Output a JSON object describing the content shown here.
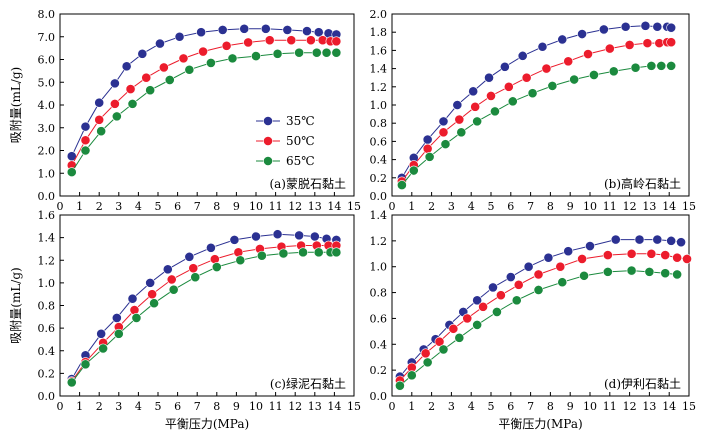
{
  "colors": {
    "s35": "#2b3192",
    "s50": "#ec1c2c",
    "s65": "#1b8a3e"
  },
  "legend": [
    "35℃",
    "50℃",
    "65℃"
  ],
  "chart_data": [
    {
      "type": "line",
      "label": "(a)蒙脱石黏土",
      "xlabel": "",
      "ylabel": "吸附量(mL/g)",
      "xlim": [
        0,
        15
      ],
      "ylim": [
        0,
        8.0
      ],
      "xticks": [
        "0",
        "1",
        "2",
        "3",
        "4",
        "5",
        "6",
        "7",
        "8",
        "9",
        "10",
        "11",
        "12",
        "13",
        "14",
        "15"
      ],
      "yticks": [
        "0.0",
        "1.0",
        "2.0",
        "3.0",
        "4.0",
        "5.0",
        "6.0",
        "7.0",
        "8.0"
      ],
      "series": [
        {
          "name": "35℃",
          "x": [
            0.6,
            1.3,
            2.0,
            2.8,
            3.4,
            4.2,
            5.1,
            6.1,
            7.2,
            8.3,
            9.4,
            10.5,
            11.6,
            12.6,
            13.2,
            13.7,
            14.1
          ],
          "y": [
            1.75,
            3.05,
            4.1,
            4.95,
            5.7,
            6.25,
            6.7,
            7.0,
            7.2,
            7.3,
            7.35,
            7.35,
            7.3,
            7.25,
            7.2,
            7.15,
            7.1
          ]
        },
        {
          "name": "50℃",
          "x": [
            0.6,
            1.3,
            2.0,
            2.8,
            3.6,
            4.4,
            5.3,
            6.3,
            7.3,
            8.5,
            9.6,
            10.7,
            11.8,
            12.8,
            13.4,
            13.8,
            14.1
          ],
          "y": [
            1.35,
            2.45,
            3.35,
            4.05,
            4.7,
            5.2,
            5.65,
            6.05,
            6.35,
            6.6,
            6.75,
            6.85,
            6.85,
            6.85,
            6.85,
            6.8,
            6.8
          ]
        },
        {
          "name": "65℃",
          "x": [
            0.6,
            1.3,
            2.1,
            2.9,
            3.7,
            4.6,
            5.6,
            6.6,
            7.7,
            8.8,
            10.0,
            11.1,
            12.2,
            13.1,
            13.6,
            14.1
          ],
          "y": [
            1.05,
            2.0,
            2.85,
            3.5,
            4.05,
            4.65,
            5.1,
            5.55,
            5.85,
            6.05,
            6.15,
            6.25,
            6.3,
            6.3,
            6.3,
            6.3
          ]
        }
      ]
    },
    {
      "type": "line",
      "label": "(b)高岭石黏土",
      "xlabel": "",
      "ylabel": "",
      "xlim": [
        0,
        15
      ],
      "ylim": [
        0,
        2.0
      ],
      "xticks": [
        "0",
        "1",
        "2",
        "3",
        "4",
        "5",
        "6",
        "7",
        "8",
        "9",
        "10",
        "11",
        "12",
        "13",
        "14",
        "15"
      ],
      "yticks": [
        "0.0",
        "0.2",
        "0.4",
        "0.6",
        "0.8",
        "1.0",
        "1.2",
        "1.4",
        "1.6",
        "1.8",
        "2.0"
      ],
      "series": [
        {
          "name": "35℃",
          "x": [
            0.5,
            1.1,
            1.8,
            2.6,
            3.3,
            4.1,
            4.9,
            5.7,
            6.6,
            7.6,
            8.6,
            9.6,
            10.7,
            11.8,
            12.8,
            13.4,
            13.9,
            14.1
          ],
          "y": [
            0.2,
            0.42,
            0.62,
            0.82,
            1.0,
            1.15,
            1.3,
            1.42,
            1.54,
            1.64,
            1.72,
            1.78,
            1.83,
            1.86,
            1.87,
            1.86,
            1.86,
            1.85
          ]
        },
        {
          "name": "50℃",
          "x": [
            0.5,
            1.1,
            1.8,
            2.6,
            3.4,
            4.2,
            5.0,
            5.9,
            6.8,
            7.8,
            8.9,
            9.9,
            11.0,
            12.0,
            12.9,
            13.5,
            13.9,
            14.1
          ],
          "y": [
            0.16,
            0.34,
            0.52,
            0.7,
            0.84,
            0.98,
            1.1,
            1.2,
            1.3,
            1.4,
            1.48,
            1.56,
            1.62,
            1.66,
            1.68,
            1.68,
            1.69,
            1.69
          ]
        },
        {
          "name": "65℃",
          "x": [
            0.5,
            1.1,
            1.9,
            2.7,
            3.5,
            4.3,
            5.2,
            6.1,
            7.1,
            8.1,
            9.2,
            10.2,
            11.2,
            12.3,
            13.1,
            13.6,
            14.1
          ],
          "y": [
            0.12,
            0.28,
            0.43,
            0.57,
            0.7,
            0.82,
            0.93,
            1.04,
            1.13,
            1.21,
            1.28,
            1.33,
            1.37,
            1.41,
            1.43,
            1.43,
            1.43
          ]
        }
      ]
    },
    {
      "type": "line",
      "label": "(c)绿泥石黏土",
      "xlabel": "平衡压力(MPa)",
      "ylabel": "吸附量(mL/g)",
      "xlim": [
        0,
        15
      ],
      "ylim": [
        0,
        1.6
      ],
      "xticks": [
        "0",
        "1",
        "2",
        "3",
        "4",
        "5",
        "6",
        "7",
        "8",
        "9",
        "10",
        "11",
        "12",
        "13",
        "14",
        "15"
      ],
      "yticks": [
        "0.0",
        "0.2",
        "0.4",
        "0.6",
        "0.8",
        "1.0",
        "1.2",
        "1.4",
        "1.6"
      ],
      "series": [
        {
          "name": "35℃",
          "x": [
            0.6,
            1.3,
            2.1,
            2.9,
            3.7,
            4.6,
            5.5,
            6.6,
            7.7,
            8.9,
            10.0,
            11.1,
            12.2,
            13.0,
            13.6,
            14.1
          ],
          "y": [
            0.15,
            0.36,
            0.55,
            0.69,
            0.86,
            1.0,
            1.12,
            1.23,
            1.31,
            1.38,
            1.41,
            1.43,
            1.42,
            1.41,
            1.39,
            1.38
          ]
        },
        {
          "name": "50℃",
          "x": [
            0.6,
            1.3,
            2.2,
            3.0,
            3.8,
            4.7,
            5.7,
            6.8,
            7.9,
            9.1,
            10.2,
            11.3,
            12.3,
            13.1,
            13.7,
            14.1
          ],
          "y": [
            0.13,
            0.3,
            0.47,
            0.61,
            0.76,
            0.9,
            1.03,
            1.13,
            1.21,
            1.27,
            1.3,
            1.32,
            1.33,
            1.33,
            1.33,
            1.33
          ]
        },
        {
          "name": "65℃",
          "x": [
            0.6,
            1.3,
            2.2,
            3.0,
            3.9,
            4.8,
            5.8,
            6.9,
            8.0,
            9.2,
            10.3,
            11.4,
            12.4,
            13.2,
            13.8,
            14.1
          ],
          "y": [
            0.12,
            0.28,
            0.42,
            0.55,
            0.69,
            0.82,
            0.94,
            1.05,
            1.14,
            1.2,
            1.24,
            1.26,
            1.27,
            1.27,
            1.27,
            1.27
          ]
        }
      ]
    },
    {
      "type": "line",
      "label": "(d)伊利石黏土",
      "xlabel": "平衡压力(MPa)",
      "ylabel": "",
      "xlim": [
        0,
        15
      ],
      "ylim": [
        0,
        1.4
      ],
      "xticks": [
        "0",
        "1",
        "2",
        "3",
        "4",
        "5",
        "6",
        "7",
        "8",
        "9",
        "10",
        "11",
        "12",
        "13",
        "14",
        "15"
      ],
      "yticks": [
        "0.0",
        "0.2",
        "0.4",
        "0.6",
        "0.8",
        "1.0",
        "1.2",
        "1.4"
      ],
      "series": [
        {
          "name": "35℃",
          "x": [
            0.4,
            1.0,
            1.6,
            2.2,
            2.9,
            3.6,
            4.3,
            5.1,
            6.0,
            6.9,
            7.9,
            8.9,
            10.0,
            11.3,
            12.5,
            13.4,
            14.1,
            14.6
          ],
          "y": [
            0.15,
            0.26,
            0.36,
            0.44,
            0.55,
            0.65,
            0.74,
            0.84,
            0.92,
            1.0,
            1.07,
            1.12,
            1.16,
            1.21,
            1.21,
            1.21,
            1.2,
            1.19
          ]
        },
        {
          "name": "50℃",
          "x": [
            0.4,
            1.0,
            1.7,
            2.4,
            3.1,
            3.8,
            4.6,
            5.5,
            6.4,
            7.4,
            8.5,
            9.6,
            10.9,
            12.1,
            13.1,
            13.8,
            14.4,
            14.9
          ],
          "y": [
            0.12,
            0.22,
            0.33,
            0.42,
            0.52,
            0.6,
            0.69,
            0.78,
            0.86,
            0.94,
            1.0,
            1.06,
            1.09,
            1.1,
            1.1,
            1.09,
            1.07,
            1.06
          ]
        },
        {
          "name": "65℃",
          "x": [
            0.4,
            1.0,
            1.8,
            2.6,
            3.4,
            4.3,
            5.3,
            6.3,
            7.4,
            8.6,
            9.7,
            10.9,
            12.1,
            13.0,
            13.8,
            14.4
          ],
          "y": [
            0.08,
            0.16,
            0.26,
            0.36,
            0.45,
            0.55,
            0.65,
            0.74,
            0.82,
            0.88,
            0.93,
            0.96,
            0.97,
            0.96,
            0.95,
            0.94
          ]
        }
      ]
    }
  ]
}
